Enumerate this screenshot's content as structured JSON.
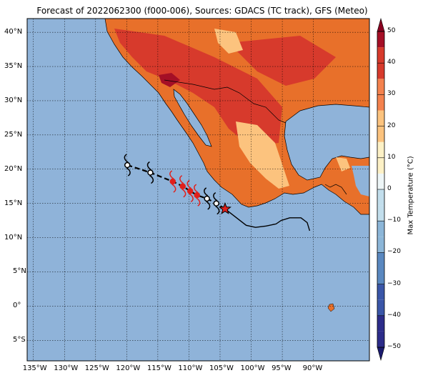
{
  "title": "Forecast of 2022062300 (f000-006), Sources: GDACS (TC track), GFS (Meteo)",
  "map": {
    "lon_range": [
      -136,
      -81
    ],
    "lat_range": [
      -8,
      42
    ],
    "lon_ticks": [
      -135,
      -130,
      -125,
      -120,
      -115,
      -110,
      -105,
      -100,
      -95,
      -90
    ],
    "lon_labels": [
      "135°W",
      "130°W",
      "125°W",
      "120°W",
      "115°W",
      "110°W",
      "105°W",
      "100°W",
      "95°W",
      "90°W"
    ],
    "lat_ticks": [
      40,
      35,
      30,
      25,
      20,
      15,
      10,
      5,
      0,
      -5
    ],
    "lat_labels": [
      "40°N",
      "35°N",
      "30°N",
      "25°N",
      "20°N",
      "15°N",
      "10°N",
      "5°N",
      "0°",
      "5°S"
    ],
    "ocean_color": "#8fb3d9",
    "track": {
      "forecast_points": [
        {
          "lon": -119.9,
          "lat": 20.6,
          "type": "forecast"
        },
        {
          "lon": -116.2,
          "lat": 19.5,
          "type": "forecast"
        },
        {
          "lon": -112.6,
          "lat": 18.2,
          "type": "hurricane"
        },
        {
          "lon": -111.0,
          "lat": 17.5,
          "type": "hurricane"
        },
        {
          "lon": -109.8,
          "lat": 16.8,
          "type": "hurricane"
        },
        {
          "lon": -108.7,
          "lat": 16.2,
          "type": "hurricane"
        },
        {
          "lon": -107.1,
          "lat": 15.7,
          "type": "forecast"
        },
        {
          "lon": -105.6,
          "lat": 15.0,
          "type": "forecast"
        }
      ],
      "current_position": {
        "lon": -104.2,
        "lat": 14.2
      },
      "past_track": [
        [
          -104.2,
          14.2
        ],
        [
          -102.5,
          13.0
        ],
        [
          -100.8,
          11.8
        ],
        [
          -99.3,
          11.5
        ],
        [
          -97.6,
          11.7
        ],
        [
          -96.0,
          12.0
        ],
        [
          -95.2,
          12.5
        ],
        [
          -93.8,
          12.9
        ],
        [
          -92.0,
          12.9
        ],
        [
          -91.0,
          12.2
        ],
        [
          -90.6,
          11.0
        ]
      ]
    }
  },
  "colorbar": {
    "label": "Max Temperature (°C)",
    "ticks": [
      50,
      40,
      30,
      20,
      10,
      0,
      -10,
      -20,
      -30,
      -40,
      -50
    ],
    "tick_labels": [
      "50",
      "40",
      "30",
      "20",
      "10",
      "0",
      "−10",
      "−20",
      "−30",
      "−40",
      "−50"
    ],
    "colors": [
      "#2c2c8a",
      "#3a56a8",
      "#5a88c0",
      "#8cb6d8",
      "#c2deec",
      "#eef6f7",
      "#fdf1c6",
      "#fcc37e",
      "#f4824e",
      "#d73a2c",
      "#a50f26"
    ]
  }
}
